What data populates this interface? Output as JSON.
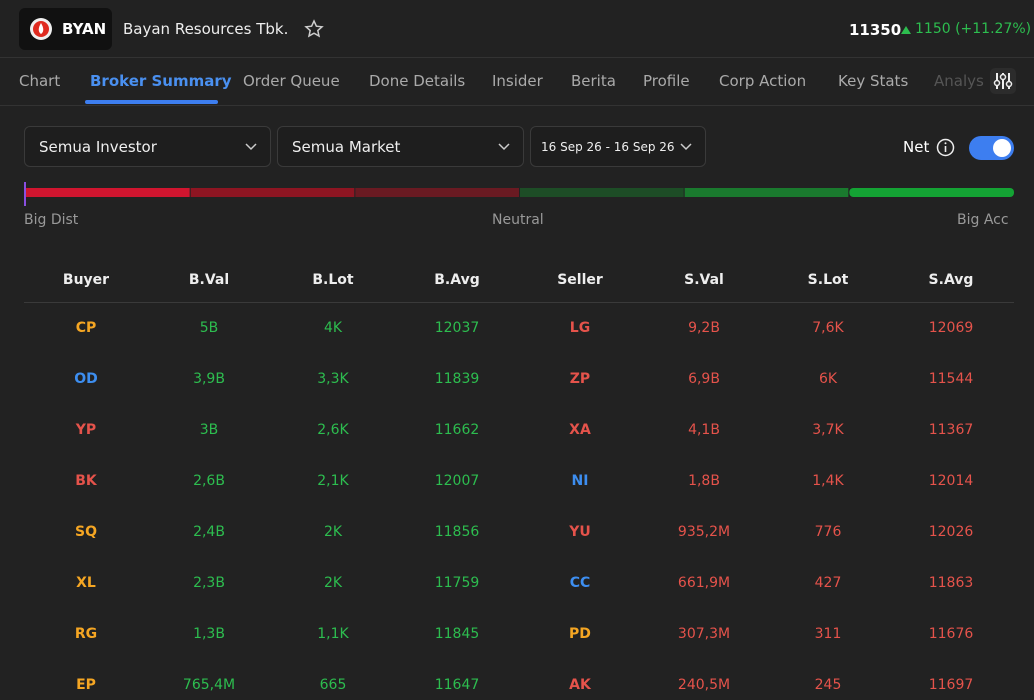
{
  "header": {
    "ticker": "BYAN",
    "company": "Bayan Resources Tbk.",
    "price": "11350",
    "change": "1150 (+11.27%)"
  },
  "tabs": {
    "items": [
      "Chart",
      "Broker Summary",
      "Order Queue",
      "Done Details",
      "Insider",
      "Berita",
      "Profile",
      "Corp Action",
      "Key Stats",
      "Analys"
    ],
    "active": 1
  },
  "filters": {
    "investor": "Semua Investor",
    "market": "Semua Market",
    "date": "16 Sep 26 - 16 Sep 26",
    "net": "Net"
  },
  "gauge": {
    "colors": [
      "#d0152f",
      "#8e1522",
      "#6a1a22",
      "#1d4d26",
      "#1a7a2e",
      "#14a334"
    ],
    "left": "Big Dist",
    "center": "Neutral",
    "right": "Big Acc"
  },
  "table": {
    "columns": [
      "Buyer",
      "B.Val",
      "B.Lot",
      "B.Avg",
      "Seller",
      "S.Val",
      "S.Lot",
      "S.Avg"
    ],
    "rows": [
      [
        "CP",
        "5B",
        "4K",
        "12037",
        "LG",
        "9,2B",
        "7,6K",
        "12069"
      ],
      [
        "OD",
        "3,9B",
        "3,3K",
        "11839",
        "ZP",
        "6,9B",
        "6K",
        "11544"
      ],
      [
        "YP",
        "3B",
        "2,6K",
        "11662",
        "XA",
        "4,1B",
        "3,7K",
        "11367"
      ],
      [
        "BK",
        "2,6B",
        "2,1K",
        "12007",
        "NI",
        "1,8B",
        "1,4K",
        "12014"
      ],
      [
        "SQ",
        "2,4B",
        "2K",
        "11856",
        "YU",
        "935,2M",
        "776",
        "12026"
      ],
      [
        "XL",
        "2,3B",
        "2K",
        "11759",
        "CC",
        "661,9M",
        "427",
        "11863"
      ],
      [
        "RG",
        "1,3B",
        "1,1K",
        "11845",
        "PD",
        "307,3M",
        "311",
        "11676"
      ],
      [
        "EP",
        "765,4M",
        "665",
        "11647",
        "AK",
        "240,5M",
        "245",
        "11697"
      ]
    ],
    "broker_colors": [
      [
        "#f5a623",
        "#e5534b"
      ],
      [
        "#3d8ef0",
        "#e5534b"
      ],
      [
        "#e5534b",
        "#e5534b"
      ],
      [
        "#e5534b",
        "#3d8ef0"
      ],
      [
        "#f5a623",
        "#e5534b"
      ],
      [
        "#f5a623",
        "#3d8ef0"
      ],
      [
        "#f5a623",
        "#f5a623"
      ],
      [
        "#f5a623",
        "#e5534b"
      ]
    ],
    "buy_color": "#2dbd4f",
    "sell_color": "#e5534b"
  }
}
